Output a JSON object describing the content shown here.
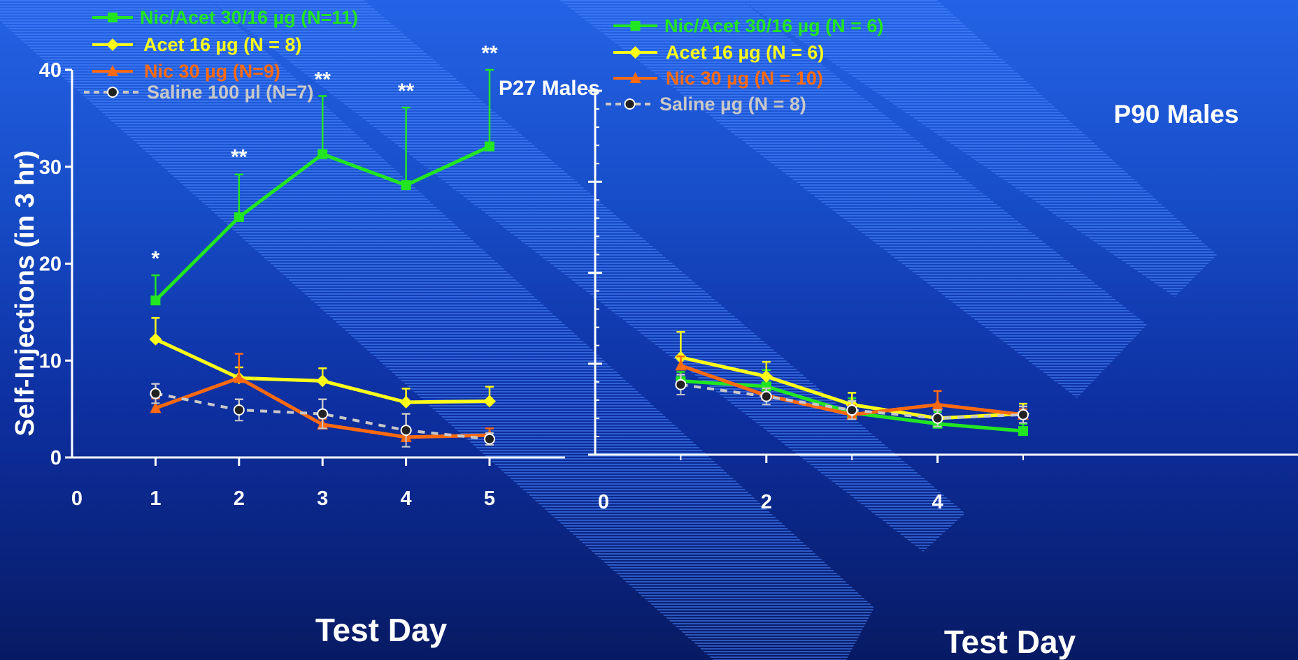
{
  "colors": {
    "nic_acet": "#22e622",
    "acet": "#ffff1a",
    "nic": "#ff6a10",
    "saline": "#c8c8c8",
    "axis": "#ffffff"
  },
  "ylabel": "Self-Injections (in 3 hr)",
  "chart_data": [
    {
      "type": "line",
      "title": "P27 Males",
      "xlabel": "Test Day",
      "ylabel": "Self-Injections (in 3 hr)",
      "xlim": [
        0,
        5
      ],
      "ylim": [
        0,
        40
      ],
      "x_ticks": [
        "0",
        "1",
        "2",
        "3",
        "4",
        "5"
      ],
      "y_ticks": [
        "0",
        "10",
        "20",
        "30",
        "40"
      ],
      "legend_position": "top-left",
      "series": [
        {
          "name": "Nic/Acet 30/16 µg (N=11)",
          "color_key": "nic_acet",
          "marker": "square",
          "dash": false,
          "x": [
            1,
            2,
            3,
            4,
            5
          ],
          "y": [
            16.2,
            24.8,
            31.3,
            28.1,
            32.1
          ],
          "err": [
            2.6,
            4.4,
            6.0,
            8.0,
            7.9
          ]
        },
        {
          "name": "Acet 16 µg (N = 8)",
          "color_key": "acet",
          "marker": "diamond",
          "dash": false,
          "x": [
            1,
            2,
            3,
            4,
            5
          ],
          "y": [
            12.2,
            8.2,
            7.9,
            5.7,
            5.8
          ],
          "err": [
            2.2,
            1.1,
            1.3,
            1.4,
            1.5
          ]
        },
        {
          "name": "Nic 30 µg (N=9)",
          "color_key": "nic",
          "marker": "triangle",
          "dash": false,
          "x": [
            1,
            2,
            3,
            4,
            5
          ],
          "y": [
            5.1,
            8.2,
            3.4,
            2.1,
            2.3
          ],
          "err": [
            1.0,
            2.5,
            0.6,
            0.6,
            0.7
          ]
        },
        {
          "name": "Saline 100 µl (N=7)",
          "color_key": "saline",
          "marker": "circle",
          "dash": true,
          "x": [
            1,
            2,
            3,
            4,
            5
          ],
          "y": [
            6.6,
            4.9,
            4.5,
            2.8,
            1.9
          ],
          "err": [
            1.0,
            1.1,
            1.5,
            1.7,
            0.6
          ]
        }
      ],
      "annotations": [
        {
          "x": 1,
          "y": 18.8,
          "text": "*"
        },
        {
          "x": 2,
          "y": 29.3,
          "text": "**"
        },
        {
          "x": 3,
          "y": 37.3,
          "text": "**"
        },
        {
          "x": 4,
          "y": 36.1,
          "text": "**"
        },
        {
          "x": 5,
          "y": 40.0,
          "text": "**"
        }
      ]
    },
    {
      "type": "line",
      "title": "P90 Males",
      "xlabel": "Test Day",
      "ylabel": "",
      "xlim": [
        0,
        5.8
      ],
      "ylim": [
        0,
        40
      ],
      "x_ticks": [
        "0",
        "2",
        "4"
      ],
      "y_ticks": [],
      "legend_position": "top-left",
      "series": [
        {
          "name": "Nic/Acet 30/16 µg (N = 6)",
          "color_key": "nic_acet",
          "marker": "square",
          "dash": false,
          "x": [
            1,
            2,
            3,
            4,
            5
          ],
          "y": [
            8.1,
            7.5,
            4.6,
            3.4,
            2.6
          ],
          "err": [
            1.0,
            1.8,
            1.6,
            1.3,
            0.8
          ]
        },
        {
          "name": "Acet 16 µg (N = 6)",
          "color_key": "acet",
          "marker": "diamond",
          "dash": false,
          "x": [
            1,
            2,
            3,
            4,
            5
          ],
          "y": [
            10.7,
            8.6,
            5.5,
            4.0,
            4.5
          ],
          "err": [
            2.8,
            1.6,
            1.3,
            1.0,
            1.1
          ]
        },
        {
          "name": "Nic 30 µg (N = 10)",
          "color_key": "nic",
          "marker": "triangle",
          "dash": false,
          "x": [
            1,
            2,
            3,
            4,
            5
          ],
          "y": [
            9.8,
            6.5,
            4.4,
            5.5,
            4.4
          ],
          "err": [
            1.0,
            0.8,
            1.0,
            1.5,
            0.6
          ]
        },
        {
          "name": "Saline µg (N = 8)",
          "color_key": "saline",
          "marker": "circle",
          "dash": true,
          "x": [
            1,
            2,
            3,
            4,
            5
          ],
          "y": [
            7.7,
            6.4,
            4.9,
            4.0,
            4.4
          ],
          "err": [
            1.1,
            0.9,
            1.0,
            0.9,
            0.9
          ]
        }
      ],
      "annotations": []
    }
  ]
}
